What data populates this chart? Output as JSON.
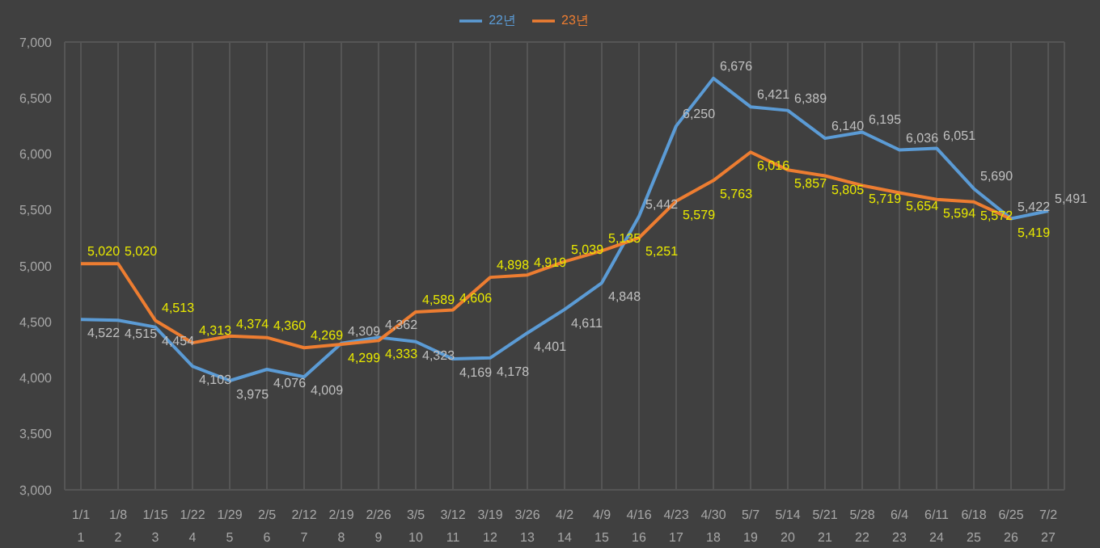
{
  "chart_data": {
    "type": "line",
    "categories": [
      "1/1\n1",
      "1/8\n2",
      "1/15\n3",
      "1/22\n4",
      "1/29\n5",
      "2/5\n6",
      "2/12\n7",
      "2/19\n8",
      "2/26\n9",
      "3/5\n10",
      "3/12\n11",
      "3/19\n12",
      "3/26\n13",
      "4/2\n14",
      "4/9\n15",
      "4/16\n16",
      "4/23\n17",
      "4/30\n18",
      "5/7\n19",
      "5/14\n20",
      "5/21\n21",
      "5/28\n22",
      "6/4\n23",
      "6/11\n24",
      "6/18\n25",
      "6/25\n26",
      "7/2\n27"
    ],
    "series": [
      {
        "name": "22년",
        "color": "#5b9bd5",
        "values": [
          4522,
          4515,
          4454,
          4103,
          3975,
          4076,
          4009,
          4309,
          4362,
          4323,
          4169,
          4178,
          4401,
          4611,
          4848,
          5442,
          6250,
          6676,
          6421,
          6389,
          6140,
          6195,
          6036,
          6051,
          5690,
          5422,
          5491
        ],
        "value_labels": [
          "4,522",
          "4,515",
          "4,454",
          "4,103",
          "3,975",
          "4,076",
          "4,009",
          "4,309",
          "4,362",
          "4,323",
          "4,169",
          "4,178",
          "4,401",
          "4,611",
          "4,848",
          "5,442",
          "6,250",
          "6,676",
          "6,421",
          "6,389",
          "6,140",
          "6,195",
          "6,036",
          "6,051",
          "5,690",
          "5,422",
          "5,491"
        ]
      },
      {
        "name": "23년",
        "color": "#ed7d31",
        "values": [
          5020,
          5020,
          4513,
          4313,
          4374,
          4360,
          4269,
          4299,
          4333,
          4589,
          4606,
          4898,
          4919,
          5039,
          5135,
          5251,
          5579,
          5763,
          6016,
          5857,
          5805,
          5719,
          5654,
          5594,
          5572,
          5419,
          null
        ],
        "value_labels": [
          "5,020",
          "5,020",
          "4,513",
          "4,313",
          "4,374",
          "4,360",
          "4,269",
          "4,299",
          "4,333",
          "4,589",
          "4,606",
          "4,898",
          "4,919",
          "5,039",
          "5,135",
          "5,251",
          "5,579",
          "5,763",
          "6,016",
          "5,857",
          "5,805",
          "5,719",
          "5,654",
          "5,594",
          "5,572",
          "5,419",
          null
        ]
      }
    ],
    "ylim": [
      3000,
      7000
    ],
    "yticks": [
      {
        "value": 3000,
        "label": "3,000"
      },
      {
        "value": 3500,
        "label": "3,500"
      },
      {
        "value": 4000,
        "label": "4,000"
      },
      {
        "value": 4500,
        "label": "4,500"
      },
      {
        "value": 5000,
        "label": "5,000"
      },
      {
        "value": 5500,
        "label": "5,500"
      },
      {
        "value": 6000,
        "label": "6,000"
      },
      {
        "value": 6500,
        "label": "6,500"
      },
      {
        "value": 7000,
        "label": "7,000"
      }
    ],
    "grid": true,
    "legend": "top",
    "marker": "none",
    "line_style": "solid"
  }
}
